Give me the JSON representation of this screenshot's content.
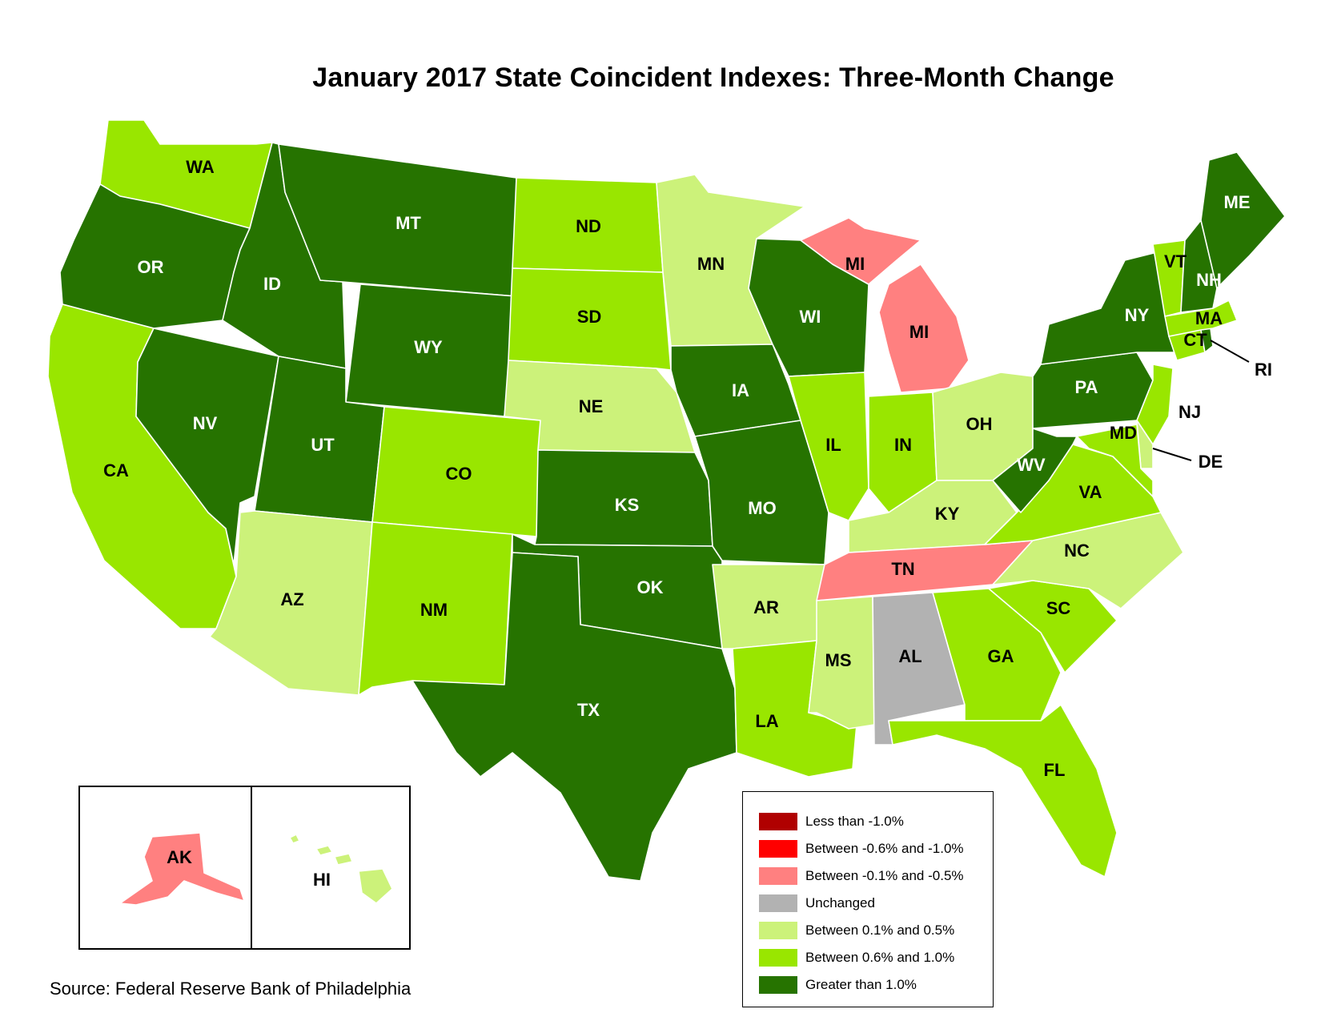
{
  "title": "January 2017 State Coincident Indexes: Three-Month Change",
  "source": "Source: Federal Reserve Bank of Philadelphia",
  "colors": {
    "lt_neg1": "#b00000",
    "neg06_neg1": "#ff0000",
    "neg01_neg05": "#ff8080",
    "unchanged": "#b2b2b2",
    "pos01_05": "#ccf27a",
    "pos06_1": "#99e600",
    "gt1": "#267300"
  },
  "legend": [
    {
      "label": "Less than -1.0%",
      "color": "#b00000"
    },
    {
      "label": "Between -0.6% and -1.0%",
      "color": "#ff0000"
    },
    {
      "label": "Between -0.1% and -0.5%",
      "color": "#ff8080"
    },
    {
      "label": "Unchanged",
      "color": "#b2b2b2"
    },
    {
      "label": "Between 0.1% and 0.5%",
      "color": "#ccf27a"
    },
    {
      "label": "Between 0.6% and 1.0%",
      "color": "#99e600"
    },
    {
      "label": "Greater than 1.0%",
      "color": "#267300"
    }
  ],
  "states": {
    "WA": "pos06_1",
    "OR": "gt1",
    "CA": "pos06_1",
    "NV": "gt1",
    "ID": "gt1",
    "MT": "gt1",
    "WY": "gt1",
    "UT": "gt1",
    "AZ": "pos01_05",
    "CO": "pos06_1",
    "NM": "pos06_1",
    "ND": "pos06_1",
    "SD": "pos06_1",
    "NE": "pos01_05",
    "KS": "gt1",
    "OK": "gt1",
    "TX": "gt1",
    "MN": "pos01_05",
    "IA": "gt1",
    "MO": "gt1",
    "AR": "pos01_05",
    "LA": "pos06_1",
    "WI": "gt1",
    "IL": "pos06_1",
    "MI": "neg01_neg05",
    "IN": "pos06_1",
    "OH": "pos01_05",
    "KY": "pos01_05",
    "TN": "neg01_neg05",
    "MS": "pos01_05",
    "AL": "unchanged",
    "GA": "pos06_1",
    "FL": "pos06_1",
    "SC": "pos06_1",
    "NC": "pos01_05",
    "VA": "pos06_1",
    "WV": "gt1",
    "PA": "gt1",
    "NY": "gt1",
    "NJ": "pos06_1",
    "DE": "pos01_05",
    "MD": "pos06_1",
    "CT": "pos06_1",
    "RI": "gt1",
    "MA": "pos06_1",
    "VT": "pos06_1",
    "NH": "gt1",
    "ME": "gt1",
    "AK": "neg01_neg05",
    "HI": "pos01_05"
  },
  "labels": {
    "WA": "WA",
    "OR": "OR",
    "CA": "CA",
    "NV": "NV",
    "ID": "ID",
    "MT": "MT",
    "WY": "WY",
    "UT": "UT",
    "AZ": "AZ",
    "CO": "CO",
    "NM": "NM",
    "ND": "ND",
    "SD": "SD",
    "NE": "NE",
    "KS": "KS",
    "OK": "OK",
    "TX": "TX",
    "MN": "MN",
    "IA": "IA",
    "MO": "MO",
    "AR": "AR",
    "LA": "LA",
    "WI": "WI",
    "IL": "IL",
    "MI_UP": "MI",
    "MI": "MI",
    "IN": "IN",
    "OH": "OH",
    "KY": "KY",
    "TN": "TN",
    "MS": "MS",
    "AL": "AL",
    "GA": "GA",
    "FL": "FL",
    "SC": "SC",
    "NC": "NC",
    "VA": "VA",
    "WV": "WV",
    "PA": "PA",
    "NY": "NY",
    "NJ": "NJ",
    "DE": "DE",
    "MD": "MD",
    "CT": "CT",
    "RI": "RI",
    "MA": "MA",
    "VT": "VT",
    "NH": "NH",
    "ME": "ME",
    "AK": "AK",
    "HI": "HI"
  }
}
